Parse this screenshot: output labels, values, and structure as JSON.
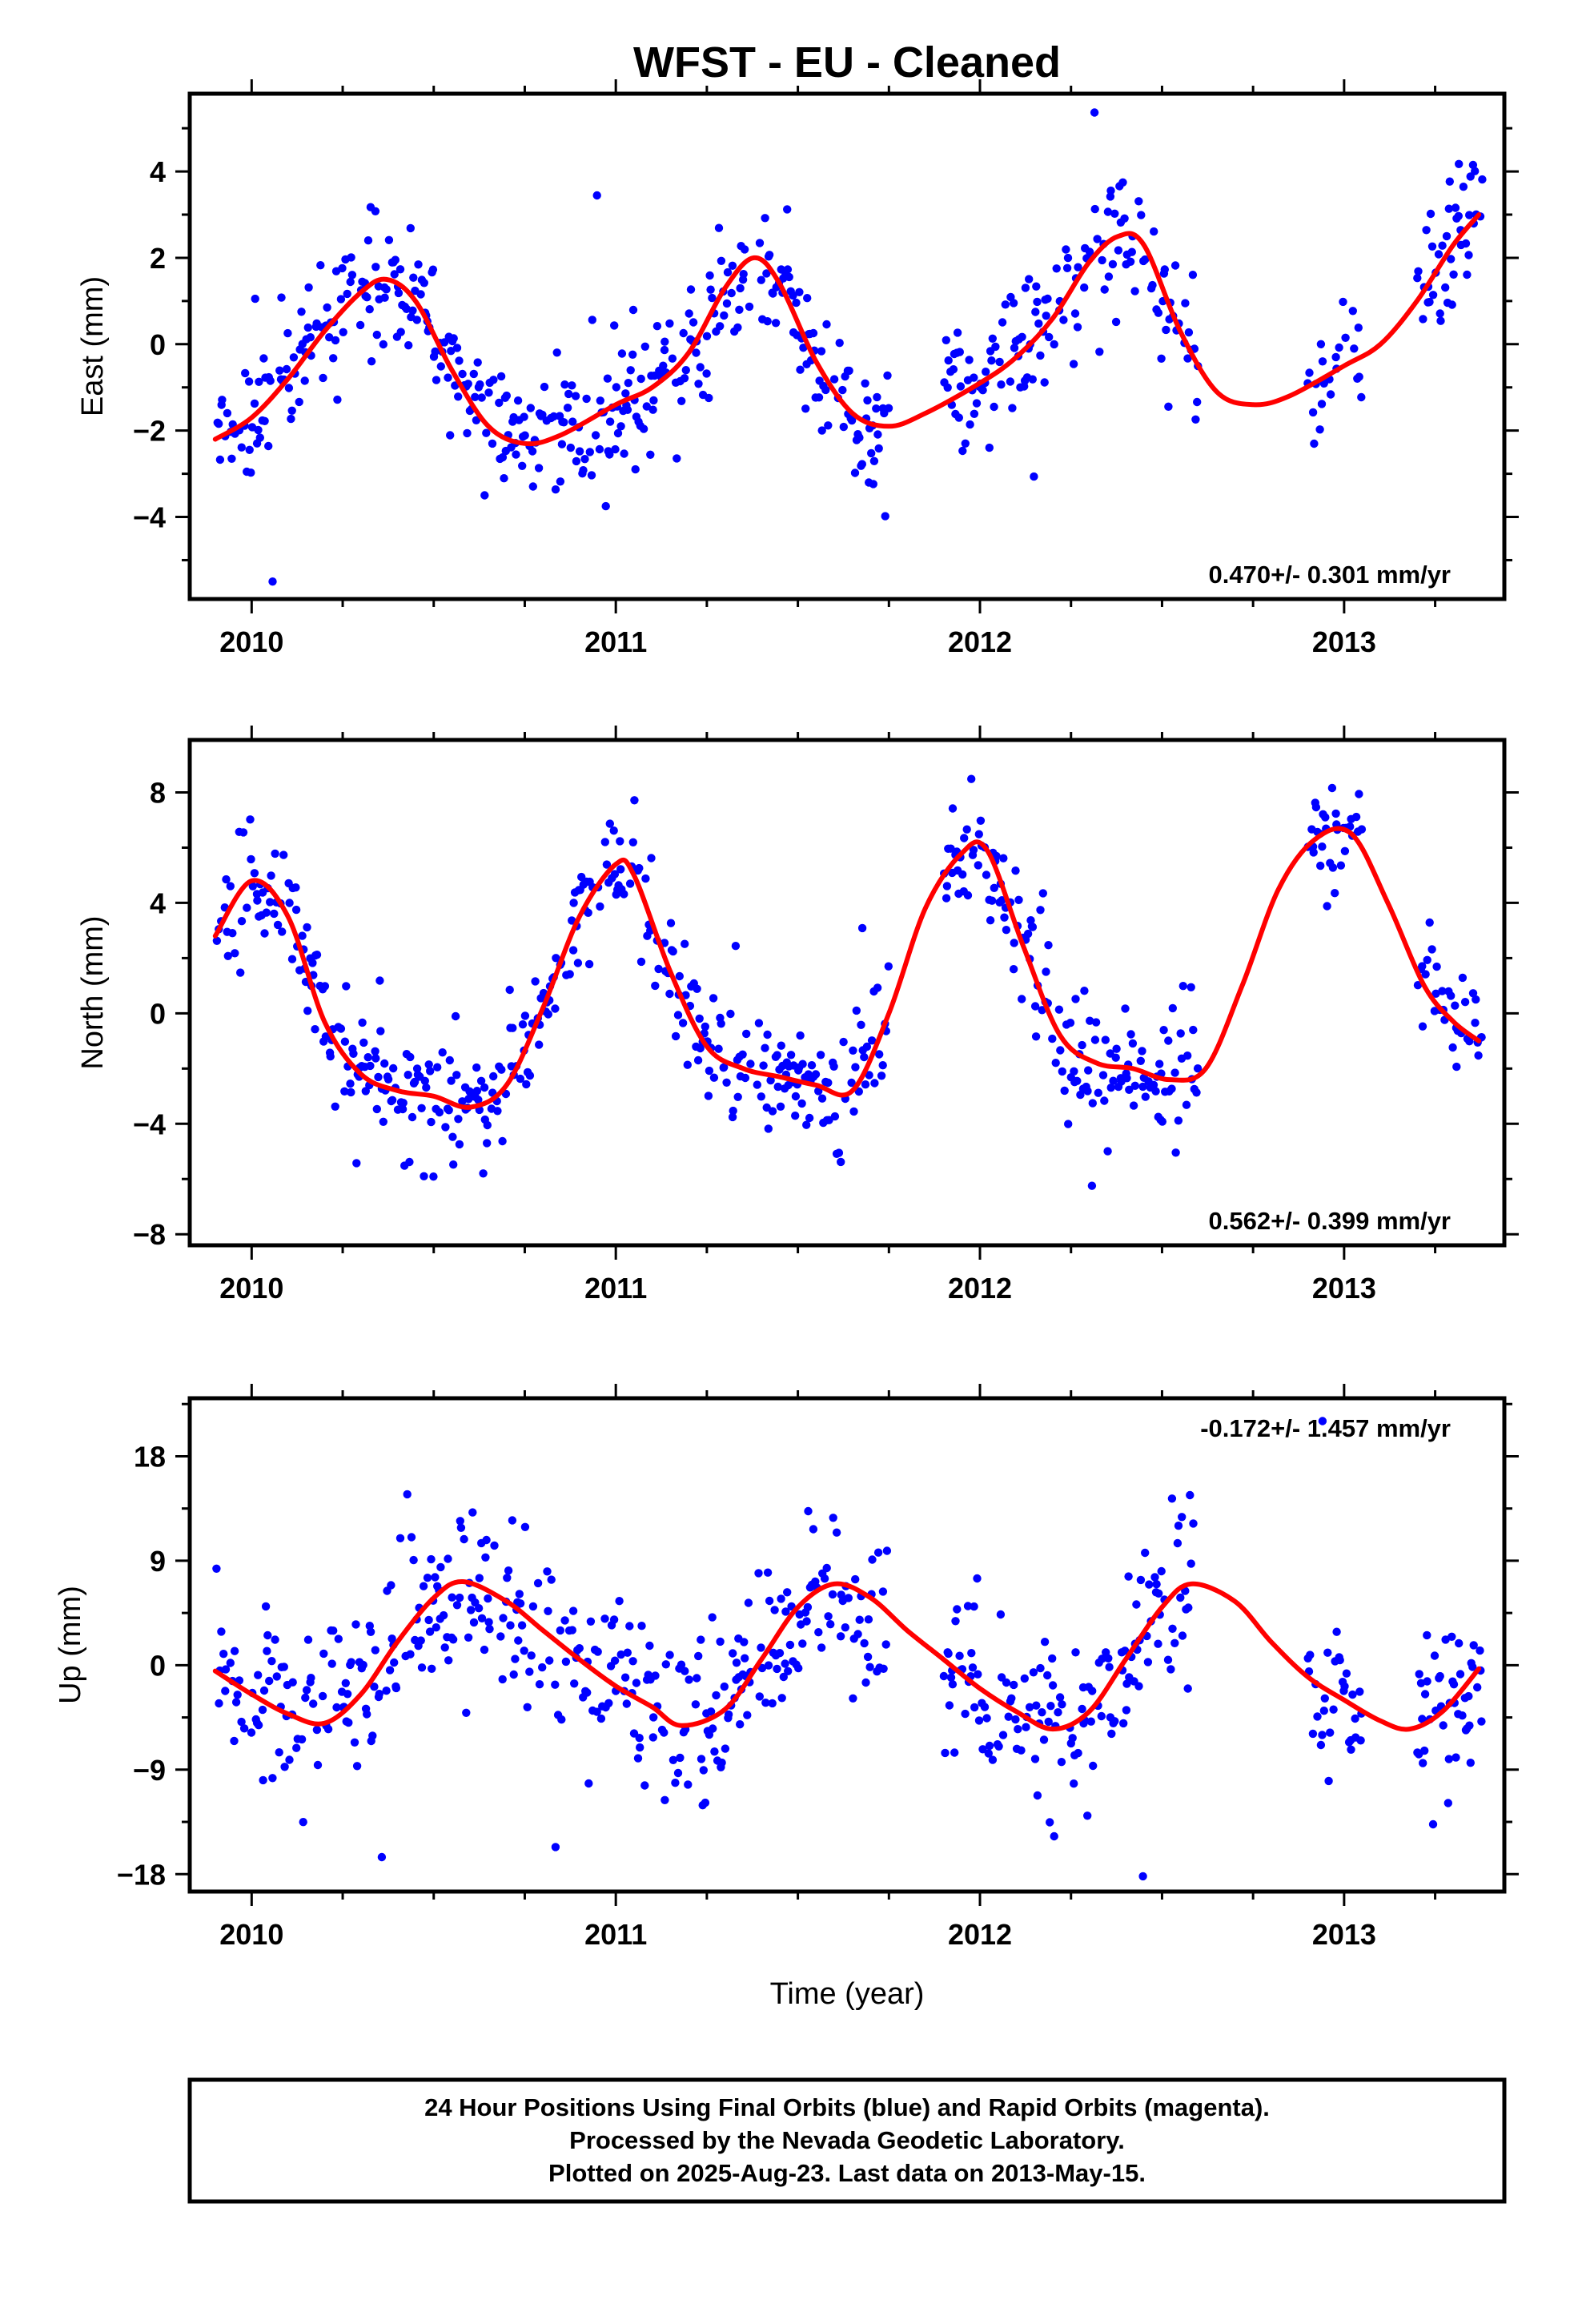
{
  "title": "WFST  - EU - Cleaned",
  "colors": {
    "data_points": "#0000ff",
    "trend_line": "#ff0000",
    "frame": "#000000"
  },
  "footer": {
    "lines": [
      "24 Hour Positions Using Final Orbits (blue) and Rapid Orbits (magenta).",
      "Processed by the Nevada Geodetic Laboratory.",
      "Plotted on 2025-Aug-23. Last data on 2013-May-15."
    ]
  },
  "chart_data": [
    {
      "type": "scatter",
      "ylabel": "East (mm)",
      "xlim": [
        2009.83,
        2013.44
      ],
      "ylim": [
        -5.9,
        5.8
      ],
      "x_ticks": [
        2010,
        2011,
        2012,
        2013
      ],
      "x_tick_labels": [
        "2010",
        "2011",
        "2012",
        "2013"
      ],
      "y_ticks": [
        -4,
        -2,
        0,
        2,
        4
      ],
      "y_tick_labels": [
        "−4",
        "−2",
        "0",
        "2",
        "4"
      ],
      "rate_text": "0.470+/- 0.301 mm/yr",
      "rate_position": "bottom-right",
      "trend": {
        "x": [
          2009.9,
          2010.0,
          2010.1,
          2010.2,
          2010.3,
          2010.37,
          2010.45,
          2010.55,
          2010.65,
          2010.75,
          2010.85,
          2011.0,
          2011.1,
          2011.2,
          2011.3,
          2011.38,
          2011.45,
          2011.55,
          2011.65,
          2011.75,
          2011.85,
          2012.0,
          2012.1,
          2012.2,
          2012.3,
          2012.38,
          2012.45,
          2012.55,
          2012.65,
          2012.75,
          2012.85,
          2013.0,
          2013.1,
          2013.2,
          2013.3,
          2013.37
        ],
        "y": [
          -2.2,
          -1.7,
          -0.8,
          0.3,
          1.2,
          1.5,
          1.0,
          -0.6,
          -1.9,
          -2.3,
          -2.1,
          -1.4,
          -1.0,
          -0.2,
          1.3,
          2.0,
          1.4,
          -0.4,
          -1.6,
          -1.9,
          -1.6,
          -0.9,
          -0.3,
          0.6,
          1.9,
          2.5,
          2.3,
          0.3,
          -1.1,
          -1.4,
          -1.2,
          -0.5,
          0.0,
          1.0,
          2.3,
          3.0
        ]
      },
      "points": {
        "data_windows": [
          [
            2009.9,
            2011.75
          ],
          [
            2011.9,
            2012.6
          ],
          [
            2012.9,
            2013.05
          ],
          [
            2013.2,
            2013.38
          ]
        ],
        "noise_sd": 0.75,
        "density_per_year": 320,
        "seed": 11
      }
    },
    {
      "type": "scatter",
      "ylabel": "North (mm)",
      "xlim": [
        2009.83,
        2013.44
      ],
      "ylim": [
        -8.4,
        9.9
      ],
      "x_ticks": [
        2010,
        2011,
        2012,
        2013
      ],
      "x_tick_labels": [
        "2010",
        "2011",
        "2012",
        "2013"
      ],
      "y_ticks": [
        -8,
        -4,
        0,
        4,
        8
      ],
      "y_tick_labels": [
        "−8",
        "−4",
        "0",
        "4",
        "8"
      ],
      "rate_text": "0.562+/- 0.399 mm/yr",
      "rate_position": "bottom-right",
      "trend": {
        "x": [
          2009.9,
          2010.0,
          2010.1,
          2010.2,
          2010.3,
          2010.4,
          2010.5,
          2010.6,
          2010.7,
          2010.8,
          2010.9,
          2011.0,
          2011.05,
          2011.15,
          2011.25,
          2011.35,
          2011.45,
          2011.55,
          2011.65,
          2011.75,
          2011.85,
          2011.95,
          2012.02,
          2012.12,
          2012.22,
          2012.32,
          2012.42,
          2012.52,
          2012.62,
          2012.72,
          2012.82,
          2012.92,
          2013.02,
          2013.12,
          2013.22,
          2013.3,
          2013.37
        ],
        "y": [
          2.8,
          4.8,
          3.5,
          -0.3,
          -2.2,
          -2.8,
          -3.0,
          -3.4,
          -2.6,
          0.2,
          3.5,
          5.4,
          5.0,
          1.5,
          -1.2,
          -2.0,
          -2.3,
          -2.6,
          -2.8,
          0.0,
          3.8,
          5.8,
          5.9,
          2.4,
          -0.8,
          -1.8,
          -2.0,
          -2.4,
          -2.0,
          1.0,
          4.5,
          6.3,
          6.5,
          4.0,
          1.0,
          -0.3,
          -1.0
        ]
      },
      "points": {
        "data_windows": [
          [
            2009.9,
            2011.75
          ],
          [
            2011.9,
            2012.6
          ],
          [
            2012.9,
            2013.05
          ],
          [
            2013.2,
            2013.38
          ]
        ],
        "noise_sd": 1.0,
        "density_per_year": 320,
        "seed": 23
      }
    },
    {
      "type": "scatter",
      "ylabel": "Up (mm)",
      "xlabel": "Time (year)",
      "xlim": [
        2009.83,
        2013.44
      ],
      "ylim": [
        -19.5,
        23.0
      ],
      "x_ticks": [
        2010,
        2011,
        2012,
        2013
      ],
      "x_tick_labels": [
        "2010",
        "2011",
        "2012",
        "2013"
      ],
      "y_ticks": [
        -18,
        -9,
        0,
        9,
        18
      ],
      "y_tick_labels": [
        "−18",
        "−9",
        "0",
        "9",
        "18"
      ],
      "rate_text": "-0.172+/- 1.457 mm/yr",
      "rate_position": "top-right",
      "trend": {
        "x": [
          2009.9,
          2010.0,
          2010.1,
          2010.2,
          2010.3,
          2010.4,
          2010.5,
          2010.58,
          2010.7,
          2010.8,
          2010.9,
          2011.0,
          2011.1,
          2011.18,
          2011.3,
          2011.4,
          2011.5,
          2011.6,
          2011.7,
          2011.8,
          2011.9,
          2012.0,
          2012.1,
          2012.2,
          2012.3,
          2012.4,
          2012.5,
          2012.58,
          2012.7,
          2012.8,
          2012.9,
          2013.0,
          2013.1,
          2013.18,
          2013.27,
          2013.37
        ],
        "y": [
          -0.5,
          -2.5,
          -4.2,
          -5.0,
          -2.5,
          2.0,
          5.8,
          7.2,
          5.5,
          3.0,
          0.5,
          -1.8,
          -3.6,
          -5.2,
          -3.8,
          0.5,
          5.0,
          7.0,
          5.8,
          3.0,
          0.5,
          -2.0,
          -4.0,
          -5.5,
          -4.0,
          0.5,
          5.0,
          7.0,
          5.5,
          2.0,
          -1.0,
          -3.0,
          -4.8,
          -5.5,
          -4.0,
          -0.3
        ]
      },
      "points": {
        "data_windows": [
          [
            2009.9,
            2011.75
          ],
          [
            2011.9,
            2012.6
          ],
          [
            2012.9,
            2013.05
          ],
          [
            2013.2,
            2013.38
          ]
        ],
        "noise_sd": 3.6,
        "density_per_year": 320,
        "seed": 37
      }
    }
  ]
}
